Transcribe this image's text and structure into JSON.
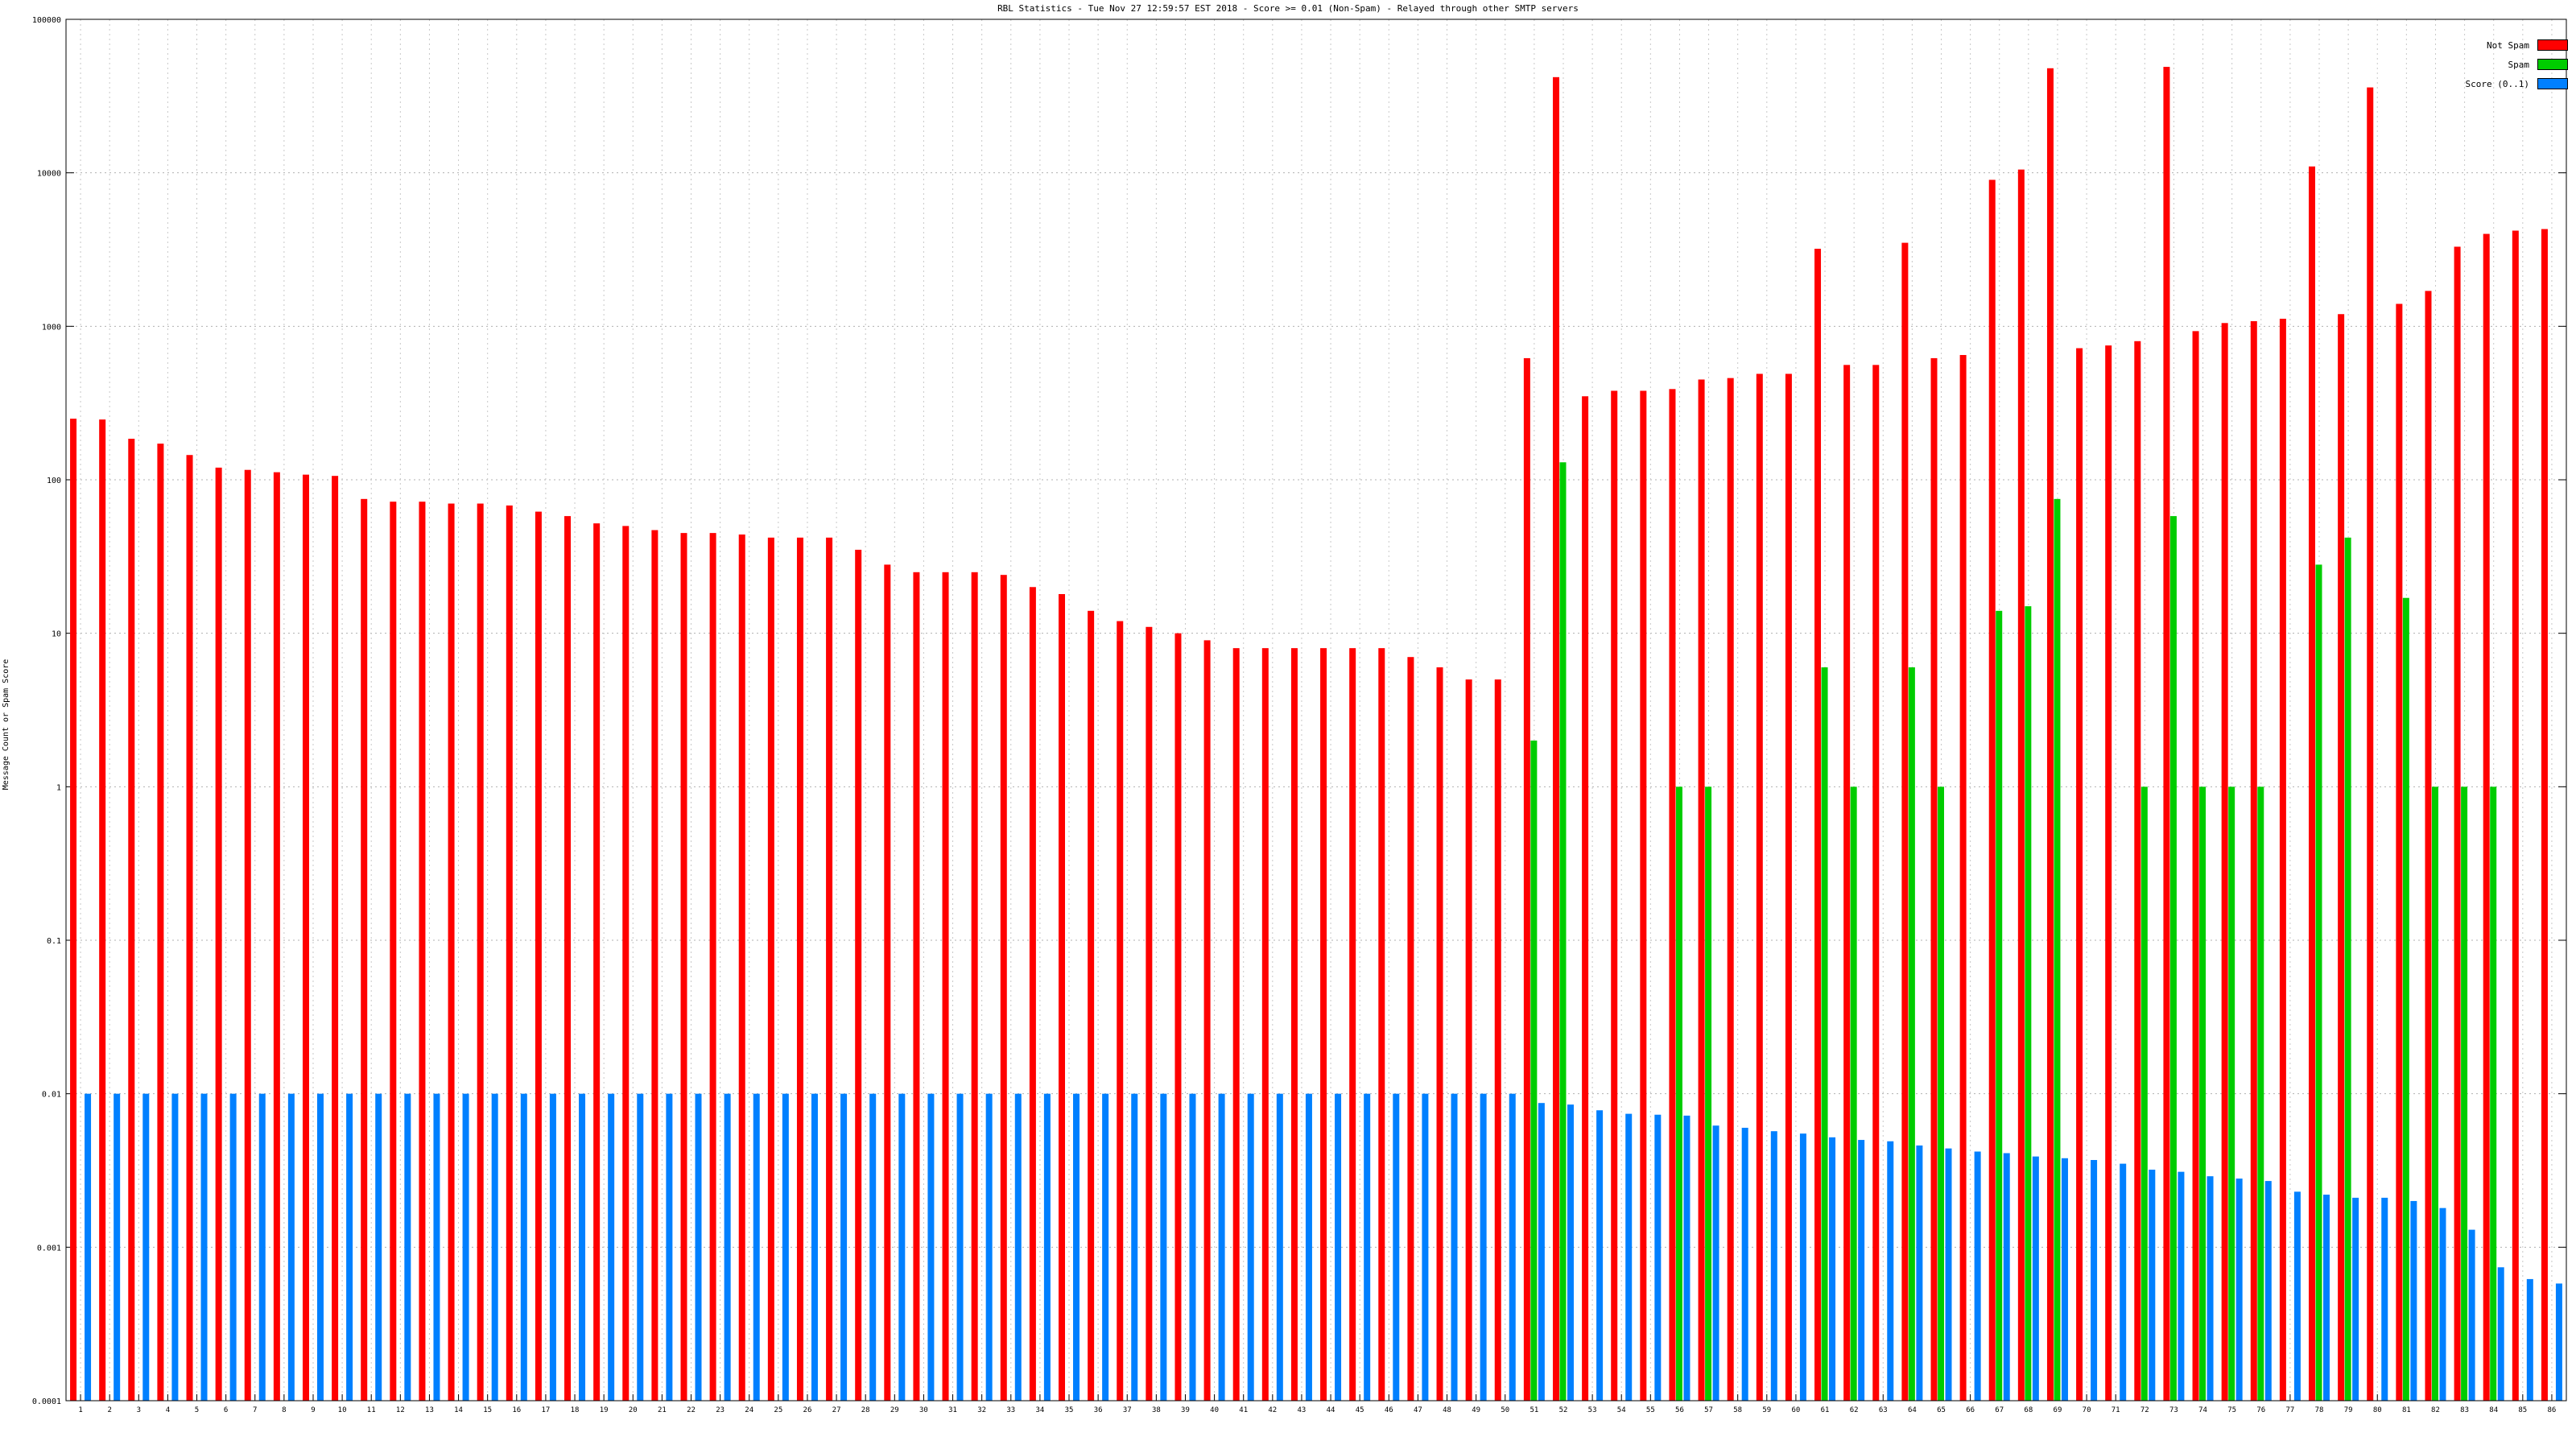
{
  "chart_data": {
    "type": "bar",
    "title": "RBL Statistics - Tue Nov 27 12:59:57 EST 2018 - Score >= 0.01 (Non-Spam) - Relayed through other SMTP servers",
    "ylabel": "Message Count or Spam Score",
    "xlabel": "",
    "yscale": "log",
    "ylim": [
      0.0001,
      100000
    ],
    "yticks": [
      {
        "value": 100000,
        "label": "100000"
      },
      {
        "value": 10000,
        "label": "10000"
      },
      {
        "value": 1000,
        "label": "1000"
      },
      {
        "value": 100,
        "label": "100"
      },
      {
        "value": 10,
        "label": "10"
      },
      {
        "value": 1,
        "label": "1"
      },
      {
        "value": 0.1,
        "label": "0.1"
      },
      {
        "value": 0.01,
        "label": "0.01"
      },
      {
        "value": 0.001,
        "label": "0.001"
      },
      {
        "value": 0.0001,
        "label": "0.0001"
      }
    ],
    "grid": true,
    "legend_position": "top-right",
    "categories": [
      "1",
      "2",
      "3",
      "4",
      "5",
      "6",
      "7",
      "8",
      "9",
      "10",
      "11",
      "12",
      "13",
      "14",
      "15",
      "16",
      "17",
      "18",
      "19",
      "20",
      "21",
      "22",
      "23",
      "24",
      "25",
      "26",
      "27",
      "28",
      "29",
      "30",
      "31",
      "32",
      "33",
      "34",
      "35",
      "36",
      "37",
      "38",
      "39",
      "40",
      "41",
      "42",
      "43",
      "44",
      "45",
      "46",
      "47",
      "48",
      "49",
      "50",
      "51",
      "52",
      "53",
      "54",
      "55",
      "56",
      "57",
      "58",
      "59",
      "60",
      "61",
      "62",
      "63",
      "64",
      "65",
      "66",
      "67",
      "68",
      "69",
      "70",
      "71",
      "72",
      "73",
      "74",
      "75",
      "76",
      "77",
      "78",
      "79",
      "80",
      "81",
      "82",
      "83",
      "84",
      "85",
      "86"
    ],
    "series": [
      {
        "name": "Not Spam",
        "color": "#ff0000",
        "values": [
          250,
          247,
          185,
          172,
          145,
          120,
          116,
          112,
          108,
          106,
          75,
          72,
          72,
          70,
          70,
          68,
          62,
          58,
          52,
          50,
          47,
          45,
          45,
          44,
          42,
          42,
          42,
          35,
          28,
          25,
          25,
          25,
          24,
          20,
          18,
          14,
          12,
          11,
          10,
          9,
          8,
          8,
          8,
          8,
          8,
          8,
          7,
          6,
          5,
          5,
          620,
          42000,
          350,
          380,
          380,
          390,
          450,
          460,
          490,
          490,
          3200,
          560,
          560,
          3500,
          620,
          650,
          9000,
          10500,
          48000,
          720,
          750,
          800,
          49000,
          930,
          1050,
          1080,
          1120,
          11000,
          1200,
          36000,
          1400,
          1700,
          3300,
          4000,
          4200,
          4300
        ]
      },
      {
        "name": "Spam",
        "color": "#00cc00",
        "values": [
          null,
          null,
          null,
          null,
          null,
          null,
          null,
          null,
          null,
          null,
          null,
          null,
          null,
          null,
          null,
          null,
          null,
          null,
          null,
          null,
          null,
          null,
          null,
          null,
          null,
          null,
          null,
          null,
          null,
          null,
          null,
          null,
          null,
          null,
          null,
          null,
          null,
          null,
          null,
          null,
          null,
          null,
          null,
          null,
          null,
          null,
          null,
          null,
          null,
          null,
          2,
          130,
          null,
          null,
          null,
          1,
          1,
          null,
          null,
          null,
          6,
          1,
          null,
          6,
          1,
          null,
          14,
          15,
          75,
          null,
          null,
          1,
          58,
          1,
          1,
          1,
          null,
          28,
          42,
          null,
          17,
          1,
          1,
          1,
          null,
          null
        ]
      },
      {
        "name": "Score (0..1)",
        "color": "#0080ff",
        "values": [
          0.01,
          0.01,
          0.01,
          0.01,
          0.01,
          0.01,
          0.01,
          0.01,
          0.01,
          0.01,
          0.01,
          0.01,
          0.01,
          0.01,
          0.01,
          0.01,
          0.01,
          0.01,
          0.01,
          0.01,
          0.01,
          0.01,
          0.01,
          0.01,
          0.01,
          0.01,
          0.01,
          0.01,
          0.01,
          0.01,
          0.01,
          0.01,
          0.01,
          0.01,
          0.01,
          0.01,
          0.01,
          0.01,
          0.01,
          0.01,
          0.01,
          0.01,
          0.01,
          0.01,
          0.01,
          0.01,
          0.01,
          0.01,
          0.01,
          0.01,
          0.0087,
          0.0085,
          0.0078,
          0.0074,
          0.0073,
          0.0072,
          0.0062,
          0.006,
          0.0057,
          0.0055,
          0.0052,
          0.005,
          0.0049,
          0.0046,
          0.0044,
          0.0042,
          0.0041,
          0.0039,
          0.0038,
          0.0037,
          0.0035,
          0.0032,
          0.0031,
          0.0029,
          0.0028,
          0.0027,
          0.0023,
          0.0022,
          0.0021,
          0.0021,
          0.002,
          0.0018,
          0.0013,
          0.00074,
          0.00062,
          0.00058
        ]
      }
    ]
  }
}
